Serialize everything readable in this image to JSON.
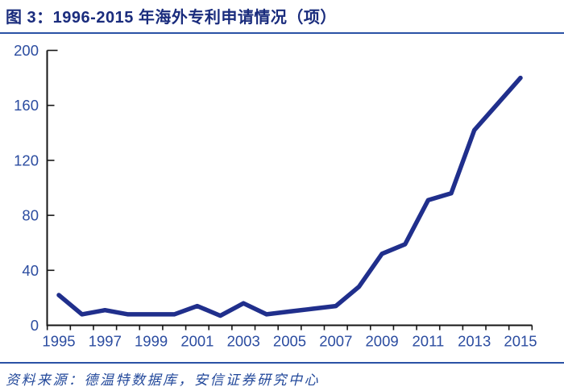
{
  "title": "图 3：1996-2015 年海外专利申请情况（项）",
  "source": "资料来源：德温特数据库，安信证券研究中心",
  "colors": {
    "title": "#1A2C7D",
    "rule": "#2A52A5",
    "axis": "#161616",
    "tick_label": "#2B4CA0",
    "line": "#202F8C",
    "source_text": "#23499B"
  },
  "chart_data": {
    "type": "line",
    "title": "1996-2015 年海外专利申请情况（项）",
    "xlabel": "",
    "ylabel": "",
    "x": [
      1995,
      1996,
      1997,
      1998,
      1999,
      2000,
      2001,
      2002,
      2003,
      2004,
      2005,
      2006,
      2007,
      2008,
      2009,
      2010,
      2011,
      2012,
      2013,
      2014,
      2015
    ],
    "values": [
      22,
      8,
      11,
      8,
      8,
      8,
      14,
      7,
      16,
      8,
      10,
      12,
      14,
      28,
      52,
      59,
      91,
      96,
      142,
      161,
      180
    ],
    "ylim": [
      0,
      200
    ],
    "yticks": [
      0,
      40,
      80,
      120,
      160,
      200
    ],
    "xtick_labels": [
      "1995",
      "1997",
      "1999",
      "2001",
      "2003",
      "2005",
      "2007",
      "2009",
      "2011",
      "2013",
      "2015"
    ],
    "grid": false,
    "legend": "none"
  }
}
